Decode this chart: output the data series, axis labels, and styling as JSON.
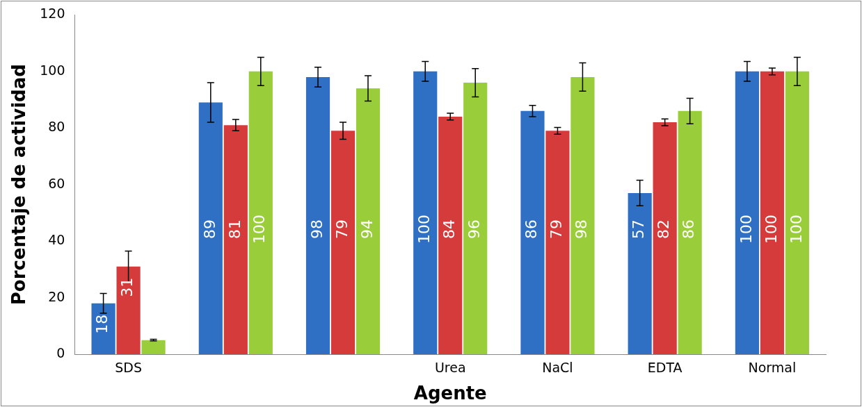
{
  "chart_data": {
    "type": "bar",
    "xlabel": "Agente",
    "ylabel": "Porcentaje de actividad",
    "categories": [
      "SDS",
      null,
      null,
      "Urea",
      "NaCl",
      "EDTA",
      "Normal"
    ],
    "ylim": [
      0,
      120
    ],
    "yticks": [
      0,
      20,
      40,
      60,
      80,
      100,
      120
    ],
    "grid": false,
    "legend": false,
    "series": [
      {
        "color": "#2f6fc4",
        "values": [
          18,
          89,
          98,
          100,
          86,
          57,
          100
        ],
        "errors": [
          3.5,
          7,
          3.5,
          3.5,
          2,
          4.5,
          3.5
        ],
        "value_labels": [
          "18",
          "89",
          "98",
          "100",
          "86",
          "57",
          "100"
        ]
      },
      {
        "color": "#d63b3b",
        "values": [
          31,
          81,
          79,
          84,
          79,
          82,
          100
        ],
        "errors": [
          5.5,
          2,
          3,
          1.2,
          1.2,
          1.2,
          1.2
        ],
        "value_labels": [
          "31",
          "81",
          "79",
          "84",
          "79",
          "82",
          "100"
        ]
      },
      {
        "color": "#9acd3a",
        "values": [
          5,
          100,
          94,
          96,
          98,
          86,
          100
        ],
        "errors": [
          0.3,
          5,
          4.5,
          5,
          5,
          4.5,
          5
        ],
        "value_labels": [
          null,
          "100",
          "94",
          "96",
          "98",
          "86",
          "100"
        ]
      }
    ]
  }
}
